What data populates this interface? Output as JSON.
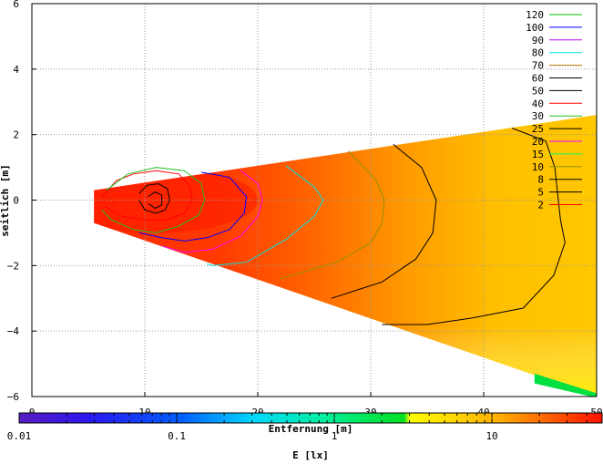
{
  "chart_data": {
    "type": "heatmap",
    "xlabel": "Entfernung [m]",
    "ylabel": "seitlich [m]",
    "xlim": [
      0,
      50
    ],
    "ylim": [
      -6,
      6
    ],
    "x_ticks": [
      "0",
      "10",
      "20",
      "30",
      "40",
      "50"
    ],
    "y_ticks": [
      "6",
      "4",
      "2",
      "0",
      "−2",
      "−4",
      "−6"
    ],
    "grid": true,
    "legend_position": "top-right",
    "colorbar": {
      "label": "E [lx]",
      "scale": "log",
      "range": [
        0.01,
        50
      ],
      "ticks": [
        "0.01",
        "0.1",
        "1",
        "10"
      ]
    },
    "field": {
      "shape": "wedge",
      "apex_x": 5.5,
      "left_edge": [
        [
          5.5,
          0.3
        ],
        [
          5.5,
          -0.7
        ]
      ],
      "right_edge": [
        [
          50,
          2.6
        ],
        [
          50,
          -6.0
        ]
      ]
    },
    "series": [
      {
        "name": "120",
        "color": "#00c000"
      },
      {
        "name": "100",
        "color": "#0000ff"
      },
      {
        "name": "90",
        "color": "#c000ff"
      },
      {
        "name": "80",
        "color": "#00e0e0"
      },
      {
        "name": "70",
        "color": "#b07000"
      },
      {
        "name": "60",
        "color": "#000000"
      },
      {
        "name": "50",
        "color": "#000000"
      },
      {
        "name": "40",
        "color": "#ff0000"
      },
      {
        "name": "30",
        "color": "#20c020"
      },
      {
        "name": "25",
        "color": "#000000"
      },
      {
        "name": "20",
        "color": "#ff00ff"
      },
      {
        "name": "15",
        "color": "#00ff60"
      },
      {
        "name": "10",
        "color": "#909000"
      },
      {
        "name": "8",
        "color": "#000000"
      },
      {
        "name": "5",
        "color": "#000000"
      },
      {
        "name": "2",
        "color": "#ff0000"
      }
    ],
    "contours": [
      {
        "level": "40",
        "color": "#ff0000",
        "points": [
          [
            6.2,
            0.1
          ],
          [
            7.5,
            0.6
          ],
          [
            9,
            0.8
          ],
          [
            11,
            0.9
          ],
          [
            13,
            0.8
          ],
          [
            14,
            0.4
          ],
          [
            14.2,
            0
          ],
          [
            13.5,
            -0.4
          ],
          [
            12,
            -0.6
          ],
          [
            10,
            -0.6
          ],
          [
            8,
            -0.5
          ],
          [
            6.5,
            -0.2
          ]
        ]
      },
      {
        "level": "50",
        "color": "#000000",
        "points": [
          [
            9.5,
            0.2
          ],
          [
            10.2,
            0.45
          ],
          [
            11.2,
            0.5
          ],
          [
            12,
            0.35
          ],
          [
            12.2,
            0
          ],
          [
            11.8,
            -0.3
          ],
          [
            11,
            -0.4
          ],
          [
            10,
            -0.3
          ],
          [
            9.5,
            0
          ]
        ]
      },
      {
        "level": "60",
        "color": "#000000",
        "points": [
          [
            10.3,
            0.1
          ],
          [
            10.9,
            0.25
          ],
          [
            11.5,
            0.15
          ],
          [
            11.5,
            -0.15
          ],
          [
            10.9,
            -0.25
          ],
          [
            10.3,
            -0.1
          ]
        ]
      },
      {
        "level": "30",
        "color": "#20c020",
        "points": [
          [
            6.6,
            0.3
          ],
          [
            8.5,
            0.8
          ],
          [
            11,
            1.0
          ],
          [
            13.5,
            0.9
          ],
          [
            15,
            0.5
          ],
          [
            15.3,
            0
          ],
          [
            14.8,
            -0.45
          ],
          [
            13,
            -0.8
          ],
          [
            11,
            -1.0
          ],
          [
            9,
            -0.9
          ],
          [
            7,
            -0.6
          ],
          [
            6.2,
            -0.3
          ]
        ]
      },
      {
        "level": "25",
        "color": "#0000ff",
        "points": [
          [
            15,
            0.85
          ],
          [
            17.5,
            0.7
          ],
          [
            19,
            0.1
          ],
          [
            18.8,
            -0.4
          ],
          [
            17.5,
            -0.9
          ],
          [
            15.5,
            -1.15
          ],
          [
            13.5,
            -1.25
          ],
          [
            11.5,
            -1.15
          ],
          [
            9.5,
            -1.0
          ]
        ]
      },
      {
        "level": "20",
        "color": "#ff00ff",
        "points": [
          [
            18.5,
            0.9
          ],
          [
            20,
            0.5
          ],
          [
            20.4,
            0
          ],
          [
            20,
            -0.5
          ],
          [
            18.5,
            -1.1
          ],
          [
            16,
            -1.5
          ],
          [
            13.5,
            -1.6
          ],
          [
            11.5,
            -1.4
          ]
        ]
      },
      {
        "level": "15",
        "color": "#00e0e0",
        "points": [
          [
            22.5,
            1.05
          ],
          [
            25,
            0.4
          ],
          [
            25.8,
            0
          ],
          [
            25,
            -0.5
          ],
          [
            22.5,
            -1.2
          ],
          [
            19,
            -1.9
          ],
          [
            16,
            -2.0
          ],
          [
            15.5,
            -1.95
          ]
        ]
      },
      {
        "level": "10",
        "color": "#909000",
        "points": [
          [
            28,
            1.5
          ],
          [
            30.5,
            0.6
          ],
          [
            31.2,
            0
          ],
          [
            31,
            -0.7
          ],
          [
            30,
            -1.3
          ],
          [
            27,
            -1.9
          ],
          [
            24,
            -2.2
          ],
          [
            22,
            -2.4
          ]
        ]
      },
      {
        "level": "8",
        "color": "#000000",
        "points": [
          [
            32,
            1.7
          ],
          [
            34.5,
            1.0
          ],
          [
            35.8,
            0
          ],
          [
            35.5,
            -1.0
          ],
          [
            34,
            -1.8
          ],
          [
            31,
            -2.5
          ],
          [
            26.5,
            -3.0
          ]
        ]
      },
      {
        "level": "5",
        "color": "#000000",
        "points": [
          [
            42.5,
            2.2
          ],
          [
            45.5,
            1.8
          ],
          [
            46.3,
            1.0
          ],
          [
            46.8,
            -0.6
          ],
          [
            47.2,
            -1.3
          ],
          [
            46.2,
            -2.3
          ],
          [
            43.5,
            -3.3
          ],
          [
            39,
            -3.6
          ],
          [
            35,
            -3.8
          ],
          [
            31,
            -3.8
          ]
        ]
      }
    ]
  }
}
